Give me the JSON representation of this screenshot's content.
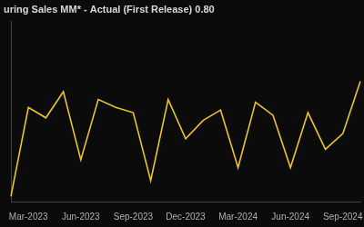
{
  "chart_data": {
    "type": "line",
    "title": "uring Sales MM* - Actual (First Release) 0.80",
    "categories": [
      null,
      "Mar-2023",
      null,
      null,
      "Jun-2023",
      null,
      null,
      "Sep-2023",
      null,
      null,
      "Dec-2023",
      null,
      null,
      "Mar-2024",
      null,
      null,
      "Jun-2024",
      null,
      null,
      "Sep-2024",
      null
    ],
    "values": [
      -3.6,
      -0.2,
      -0.6,
      0.4,
      -2.2,
      0.1,
      -0.2,
      -0.4,
      -3.0,
      0.1,
      -1.4,
      -0.7,
      -0.3,
      -2.5,
      0.0,
      -0.5,
      -2.5,
      -0.4,
      -1.8,
      -1.2,
      0.8
    ],
    "color": "#e8c42a",
    "ylim": [
      -3.8,
      3.1
    ],
    "grid": false,
    "tick_labels": "x"
  }
}
